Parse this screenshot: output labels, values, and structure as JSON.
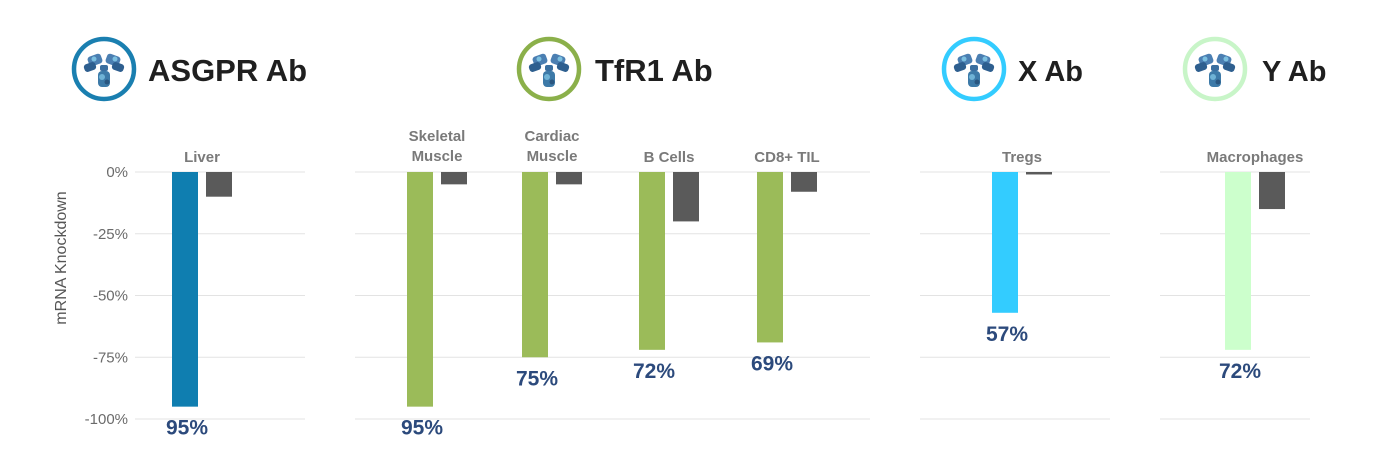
{
  "chart_data": {
    "type": "bar",
    "ylabel": "mRNA Knockdown",
    "yticks": [
      "0%",
      "-25%",
      "-50%",
      "-75%",
      "-100%"
    ],
    "ylim": [
      -100,
      0
    ],
    "grid": true,
    "colors": {
      "control": "#5a5a5a"
    },
    "groups": [
      {
        "title": "ASGPR Ab",
        "icon": "antibody-icon",
        "ring_color": "#1a7fb0",
        "bar_color": "#0f7eb0",
        "categories": [
          {
            "label": [
              "Liver"
            ],
            "value": -95,
            "control": -10,
            "pct_label": "95%"
          }
        ]
      },
      {
        "title": "TfR1 Ab",
        "icon": "antibody-icon",
        "ring_color": "#8bb04a",
        "bar_color": "#9bbb59",
        "categories": [
          {
            "label": [
              "Skeletal",
              "Muscle"
            ],
            "value": -95,
            "control": -5,
            "pct_label": "95%"
          },
          {
            "label": [
              "Cardiac",
              "Muscle"
            ],
            "value": -75,
            "control": -5,
            "pct_label": "75%"
          },
          {
            "label": [
              "B Cells"
            ],
            "value": -72,
            "control": -20,
            "pct_label": "72%"
          },
          {
            "label": [
              "CD8+ TIL"
            ],
            "value": -69,
            "control": -8,
            "pct_label": "69%"
          }
        ]
      },
      {
        "title": "X Ab",
        "icon": "antibody-icon",
        "ring_color": "#33ccff",
        "bar_color": "#33ccff",
        "categories": [
          {
            "label": [
              "Tregs"
            ],
            "value": -57,
            "control": -1,
            "pct_label": "57%"
          }
        ]
      },
      {
        "title": "Y Ab",
        "icon": "antibody-icon",
        "ring_color": "#c8f5c8",
        "bar_color": "#ccffcc",
        "categories": [
          {
            "label": [
              "Macrophages"
            ],
            "value": -72,
            "control": -15,
            "pct_label": "72%"
          }
        ]
      }
    ]
  }
}
